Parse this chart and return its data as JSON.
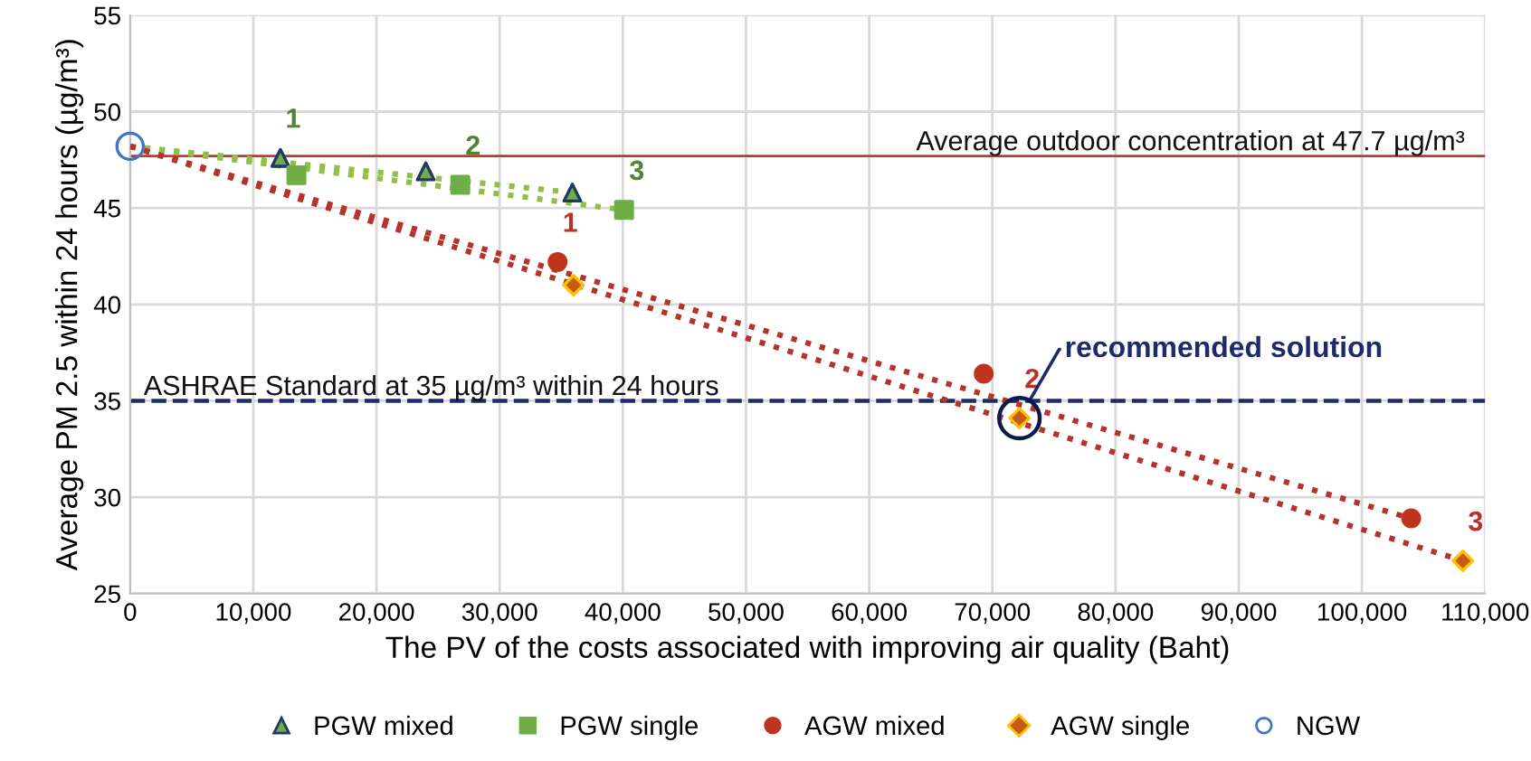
{
  "chart_data": {
    "type": "scatter",
    "xlabel": "The PV of the costs associated with improving air quality (Baht)",
    "ylabel": "Average PM 2.5 within 24 hours (µg/m³)",
    "xlim": [
      0,
      110000
    ],
    "ylim": [
      25,
      55
    ],
    "xticks": [
      0,
      {
        "value": 10000,
        "label": "10,000"
      },
      {
        "value": 20000,
        "label": "20,000"
      },
      {
        "value": 30000,
        "label": "30,000"
      },
      {
        "value": 40000,
        "label": "40,000"
      },
      {
        "value": 50000,
        "label": "50,000"
      },
      {
        "value": 60000,
        "label": "60,000"
      },
      {
        "value": 70000,
        "label": "70,000"
      },
      {
        "value": 80000,
        "label": "80,000"
      },
      {
        "value": 90000,
        "label": "90,000"
      },
      {
        "value": 100000,
        "label": "100,000"
      },
      {
        "value": 110000,
        "label": "110,000"
      }
    ],
    "yticks": [
      25,
      30,
      35,
      40,
      45,
      50,
      55
    ],
    "grid": true,
    "legend": "bottom",
    "series": [
      {
        "type": "line",
        "color": "#8dc044",
        "line_style": "dotted",
        "marker": "none",
        "x": [
          0,
          35900
        ],
        "values": [
          48.2,
          45.8
        ]
      },
      {
        "type": "line",
        "color": "#8dc044",
        "line_style": "dotted",
        "marker": "none",
        "x": [
          0,
          40100
        ],
        "values": [
          48.2,
          44.9
        ]
      },
      {
        "type": "line",
        "color": "#b5332a",
        "line_style": "dotted",
        "marker": "none",
        "x": [
          0,
          104000
        ],
        "values": [
          48.2,
          28.9
        ]
      },
      {
        "type": "line",
        "color": "#b5332a",
        "line_style": "dotted",
        "marker": "none",
        "x": [
          0,
          108200
        ],
        "values": [
          48.2,
          26.7
        ]
      },
      {
        "name": "PGW mixed",
        "color": "#70ad47",
        "marker": "triangle",
        "x": [
          12200,
          24000,
          35900
        ],
        "values": [
          47.6,
          46.9,
          45.8
        ]
      },
      {
        "name": "PGW single",
        "color": "#70ad47",
        "marker": "square",
        "x": [
          13500,
          26800,
          40100
        ],
        "values": [
          46.7,
          46.2,
          44.9
        ]
      },
      {
        "name": "AGW mixed",
        "color": "#c0341d",
        "marker": "circle",
        "x": [
          34700,
          69300,
          104000
        ],
        "values": [
          42.2,
          36.4,
          28.9
        ]
      },
      {
        "name": "AGW single",
        "color": "#c55a11",
        "marker": "diamond",
        "x": [
          36000,
          72200,
          108200
        ],
        "values": [
          41.0,
          34.1,
          26.7
        ]
      },
      {
        "name": "NGW",
        "color": "#4472c4",
        "marker": "circle",
        "x": [
          0
        ],
        "values": [
          48.2
        ]
      }
    ],
    "ref_lines": [
      {
        "axis": "y",
        "value": 47.7,
        "label": "Average outdoor concentration at 47.7 µg/m³",
        "color": "#c0392b",
        "line_style": "solid"
      },
      {
        "axis": "y",
        "value": 35,
        "label": "ASHRAE Standard at 35 µg/m³ within 24 hours",
        "color": "#1f2a6b",
        "line_style": "dashed"
      }
    ],
    "annotations": [
      {
        "text": "1",
        "x": 12200,
        "y": 47.6
      },
      {
        "text": "2",
        "x": 26800,
        "y": 46.2
      },
      {
        "text": "3",
        "x": 40100,
        "y": 44.9
      },
      {
        "text": "1",
        "x": 34700,
        "y": 42.2
      },
      {
        "text": "2",
        "x": 72200,
        "y": 34.1
      },
      {
        "text": "3",
        "x": 108200,
        "y": 26.7
      },
      {
        "text": "recommended solution",
        "x": 72200,
        "y": 34.1
      }
    ]
  }
}
